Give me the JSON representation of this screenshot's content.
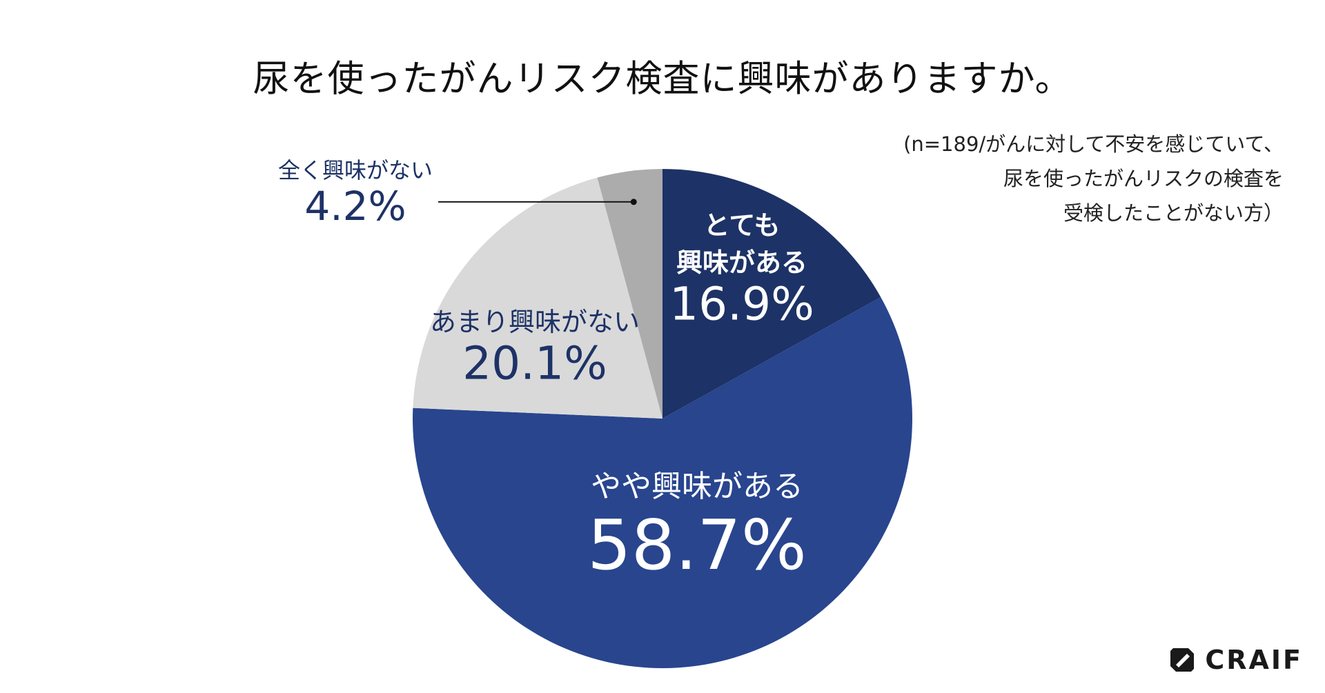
{
  "title": "尿を使ったがんリスク検査に興味がありますか。",
  "note": {
    "lines": [
      "(n=189/がんに対して不安を感じていて、",
      "尿を使ったがんリスクの検査を",
      "受検したことがない方）"
    ]
  },
  "chart_data": {
    "type": "pie",
    "start_angle_deg": 0,
    "direction": "clockwise",
    "slices": [
      {
        "label_lines": [
          "とても",
          "興味がある"
        ],
        "value": 16.9,
        "value_label": "16.9%",
        "color": "#1d3266",
        "label_color": "#ffffff"
      },
      {
        "label_lines": [
          "やや興味がある"
        ],
        "value": 58.7,
        "value_label": "58.7%",
        "color": "#28458e",
        "label_color": "#ffffff"
      },
      {
        "label_lines": [
          "あまり興味がない"
        ],
        "value": 20.1,
        "value_label": "20.1%",
        "color": "#d9d9d9",
        "label_color": "#1d3266"
      },
      {
        "label_lines": [
          "全く興味がない"
        ],
        "value": 4.2,
        "value_label": "4.2%",
        "color": "#acacac",
        "label_color": "#1d3266",
        "callout": true
      }
    ]
  },
  "logo": {
    "text": "CRAIF"
  }
}
